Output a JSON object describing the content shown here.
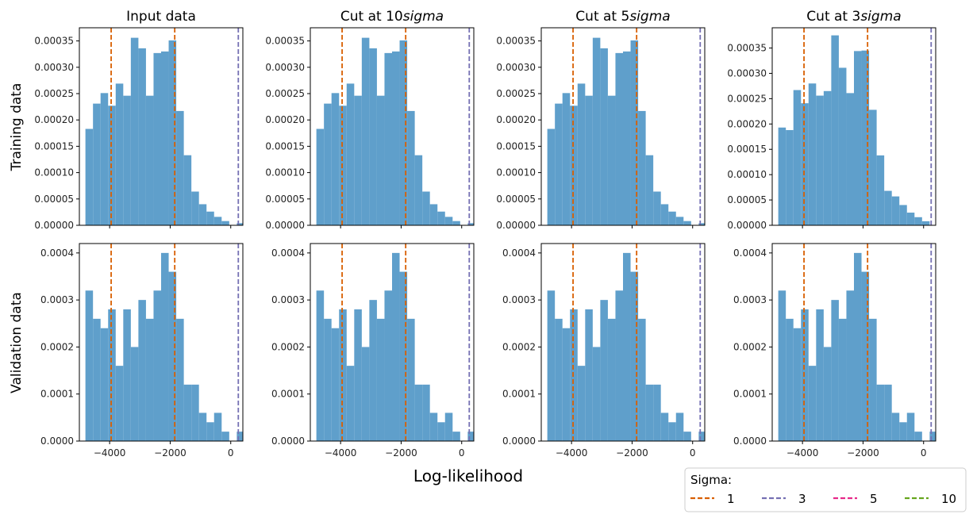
{
  "figure": {
    "xlabel": "Log-likelihood",
    "row_labels": [
      "Training data",
      "Validation data"
    ],
    "colors": {
      "bar": "#5f9fcb",
      "sigma_1": "#d95f02",
      "sigma_3": "#7570b3",
      "sigma_5": "#e7298a",
      "sigma_10": "#66a61e"
    },
    "legend": {
      "title": "Sigma:",
      "placement": "lower-right",
      "entries": [
        {
          "label": "1",
          "color": "#d95f02"
        },
        {
          "label": "3",
          "color": "#7570b3"
        },
        {
          "label": "5",
          "color": "#e7298a"
        },
        {
          "label": "10",
          "color": "#66a61e"
        }
      ]
    }
  },
  "chart_data": [
    {
      "type": "bar",
      "title": "Input data",
      "row": "Training data",
      "xlim": [
        -5000,
        400
      ],
      "ylim": [
        0,
        0.000375
      ],
      "xticks": [
        -4000,
        -2000,
        0
      ],
      "xtick_labels": [
        "−4000",
        "−2000",
        "0"
      ],
      "show_xtick_labels": false,
      "yticks": [
        0,
        5e-05,
        0.0001,
        0.00015,
        0.0002,
        0.00025,
        0.0003,
        0.00035
      ],
      "ytick_labels": [
        "0.00000",
        "0.00005",
        "0.00010",
        "0.00015",
        "0.00020",
        "0.00025",
        "0.00030",
        "0.00035"
      ],
      "bin_start": -4800,
      "bin_width": 250,
      "values": [
        0.000183,
        0.000231,
        0.000251,
        0.000227,
        0.000269,
        0.000246,
        0.000356,
        0.000336,
        0.000246,
        0.000327,
        0.00033,
        0.000351,
        0.000217,
        0.000133,
        6.4e-05,
        4e-05,
        2.6e-05,
        1.6e-05,
        8e-06,
        0,
        4e-06
      ],
      "vlines": [
        {
          "x": -3950,
          "sigma": "1"
        },
        {
          "x": -1850,
          "sigma": "1"
        },
        {
          "x": 250,
          "sigma": "3"
        }
      ]
    },
    {
      "type": "bar",
      "title": "Cut at 10$sigma$",
      "title_parts": [
        "Cut at 10",
        "sigma"
      ],
      "row": "Training data",
      "xlim": [
        -5000,
        400
      ],
      "ylim": [
        0,
        0.000375
      ],
      "xticks": [
        -4000,
        -2000,
        0
      ],
      "xtick_labels": [
        "−4000",
        "−2000",
        "0"
      ],
      "show_xtick_labels": false,
      "yticks": [
        0,
        5e-05,
        0.0001,
        0.00015,
        0.0002,
        0.00025,
        0.0003,
        0.00035
      ],
      "ytick_labels": [
        "0.00000",
        "0.00005",
        "0.00010",
        "0.00015",
        "0.00020",
        "0.00025",
        "0.00030",
        "0.00035"
      ],
      "bin_start": -4800,
      "bin_width": 250,
      "values": [
        0.000183,
        0.000231,
        0.000251,
        0.000227,
        0.000269,
        0.000246,
        0.000356,
        0.000336,
        0.000246,
        0.000327,
        0.00033,
        0.000351,
        0.000217,
        0.000133,
        6.4e-05,
        4e-05,
        2.6e-05,
        1.6e-05,
        8e-06,
        0,
        4e-06
      ],
      "vlines": [
        {
          "x": -3950,
          "sigma": "1"
        },
        {
          "x": -1850,
          "sigma": "1"
        },
        {
          "x": 250,
          "sigma": "3"
        }
      ]
    },
    {
      "type": "bar",
      "title": "Cut at 5$sigma$",
      "title_parts": [
        "Cut at 5",
        "sigma"
      ],
      "row": "Training data",
      "xlim": [
        -5000,
        400
      ],
      "ylim": [
        0,
        0.000375
      ],
      "xticks": [
        -4000,
        -2000,
        0
      ],
      "xtick_labels": [
        "−4000",
        "−2000",
        "0"
      ],
      "show_xtick_labels": false,
      "yticks": [
        0,
        5e-05,
        0.0001,
        0.00015,
        0.0002,
        0.00025,
        0.0003,
        0.00035
      ],
      "ytick_labels": [
        "0.00000",
        "0.00005",
        "0.00010",
        "0.00015",
        "0.00020",
        "0.00025",
        "0.00030",
        "0.00035"
      ],
      "bin_start": -4800,
      "bin_width": 250,
      "values": [
        0.000183,
        0.000231,
        0.000251,
        0.000227,
        0.000269,
        0.000246,
        0.000356,
        0.000336,
        0.000246,
        0.000327,
        0.00033,
        0.000351,
        0.000217,
        0.000133,
        6.4e-05,
        4e-05,
        2.6e-05,
        1.6e-05,
        8e-06,
        0,
        4e-06
      ],
      "vlines": [
        {
          "x": -3950,
          "sigma": "1"
        },
        {
          "x": -1850,
          "sigma": "1"
        },
        {
          "x": 250,
          "sigma": "3"
        }
      ]
    },
    {
      "type": "bar",
      "title": "Cut at 3$sigma$",
      "title_parts": [
        "Cut at 3",
        "sigma"
      ],
      "row": "Training data",
      "xlim": [
        -5000,
        400
      ],
      "ylim": [
        0,
        0.00039
      ],
      "xticks": [
        -4000,
        -2000,
        0
      ],
      "xtick_labels": [
        "−4000",
        "−2000",
        "0"
      ],
      "show_xtick_labels": false,
      "yticks": [
        0,
        5e-05,
        0.0001,
        0.00015,
        0.0002,
        0.00025,
        0.0003,
        0.00035
      ],
      "ytick_labels": [
        "0.00000",
        "0.00005",
        "0.00010",
        "0.00015",
        "0.00020",
        "0.00025",
        "0.00030",
        "0.00035"
      ],
      "bin_start": -4800,
      "bin_width": 250,
      "values": [
        0.000193,
        0.000188,
        0.000267,
        0.000241,
        0.00028,
        0.000256,
        0.000265,
        0.000375,
        0.000311,
        0.000261,
        0.000344,
        0.000345,
        0.000228,
        0.000138,
        6.8e-05,
        5.7e-05,
        4e-05,
        2.5e-05,
        1.6e-05,
        8e-06
      ],
      "vlines": [
        {
          "x": -3950,
          "sigma": "1"
        },
        {
          "x": -1850,
          "sigma": "1"
        },
        {
          "x": 250,
          "sigma": "3"
        }
      ]
    },
    {
      "type": "bar",
      "title": "",
      "row": "Validation data",
      "xlim": [
        -5000,
        400
      ],
      "ylim": [
        0,
        0.00042
      ],
      "xticks": [
        -4000,
        -2000,
        0
      ],
      "xtick_labels": [
        "−4000",
        "−2000",
        "0"
      ],
      "show_xtick_labels": true,
      "yticks": [
        0,
        0.0001,
        0.0002,
        0.0003,
        0.0004
      ],
      "ytick_labels": [
        "0.0000",
        "0.0001",
        "0.0002",
        "0.0003",
        "0.0004"
      ],
      "bin_start": -4800,
      "bin_width": 250,
      "values": [
        0.00032,
        0.00026,
        0.00024,
        0.00028,
        0.00016,
        0.00028,
        0.0002,
        0.0003,
        0.00026,
        0.00032,
        0.0004,
        0.00036,
        0.00026,
        0.00012,
        0.00012,
        6e-05,
        4e-05,
        6e-05,
        2e-05,
        0,
        2e-05
      ],
      "vlines": [
        {
          "x": -3950,
          "sigma": "1"
        },
        {
          "x": -1850,
          "sigma": "1"
        },
        {
          "x": 250,
          "sigma": "3"
        }
      ]
    },
    {
      "type": "bar",
      "title": "",
      "row": "Validation data",
      "xlim": [
        -5000,
        400
      ],
      "ylim": [
        0,
        0.00042
      ],
      "xticks": [
        -4000,
        -2000,
        0
      ],
      "xtick_labels": [
        "−4000",
        "−2000",
        "0"
      ],
      "show_xtick_labels": true,
      "yticks": [
        0,
        0.0001,
        0.0002,
        0.0003,
        0.0004
      ],
      "ytick_labels": [
        "0.0000",
        "0.0001",
        "0.0002",
        "0.0003",
        "0.0004"
      ],
      "bin_start": -4800,
      "bin_width": 250,
      "values": [
        0.00032,
        0.00026,
        0.00024,
        0.00028,
        0.00016,
        0.00028,
        0.0002,
        0.0003,
        0.00026,
        0.00032,
        0.0004,
        0.00036,
        0.00026,
        0.00012,
        0.00012,
        6e-05,
        4e-05,
        6e-05,
        2e-05,
        0,
        2e-05
      ],
      "vlines": [
        {
          "x": -3950,
          "sigma": "1"
        },
        {
          "x": -1850,
          "sigma": "1"
        },
        {
          "x": 250,
          "sigma": "3"
        }
      ]
    },
    {
      "type": "bar",
      "title": "",
      "row": "Validation data",
      "xlim": [
        -5000,
        400
      ],
      "ylim": [
        0,
        0.00042
      ],
      "xticks": [
        -4000,
        -2000,
        0
      ],
      "xtick_labels": [
        "−4000",
        "−2000",
        "0"
      ],
      "show_xtick_labels": true,
      "yticks": [
        0,
        0.0001,
        0.0002,
        0.0003,
        0.0004
      ],
      "ytick_labels": [
        "0.0000",
        "0.0001",
        "0.0002",
        "0.0003",
        "0.0004"
      ],
      "bin_start": -4800,
      "bin_width": 250,
      "values": [
        0.00032,
        0.00026,
        0.00024,
        0.00028,
        0.00016,
        0.00028,
        0.0002,
        0.0003,
        0.00026,
        0.00032,
        0.0004,
        0.00036,
        0.00026,
        0.00012,
        0.00012,
        6e-05,
        4e-05,
        6e-05,
        2e-05,
        0,
        2e-05
      ],
      "vlines": [
        {
          "x": -3950,
          "sigma": "1"
        },
        {
          "x": -1850,
          "sigma": "1"
        },
        {
          "x": 250,
          "sigma": "3"
        }
      ]
    },
    {
      "type": "bar",
      "title": "",
      "row": "Validation data",
      "xlim": [
        -5000,
        400
      ],
      "ylim": [
        0,
        0.00042
      ],
      "xticks": [
        -4000,
        -2000,
        0
      ],
      "xtick_labels": [
        "−4000",
        "−2000",
        "0"
      ],
      "show_xtick_labels": true,
      "yticks": [
        0,
        0.0001,
        0.0002,
        0.0003,
        0.0004
      ],
      "ytick_labels": [
        "0.0000",
        "0.0001",
        "0.0002",
        "0.0003",
        "0.0004"
      ],
      "bin_start": -4800,
      "bin_width": 250,
      "values": [
        0.00032,
        0.00026,
        0.00024,
        0.00028,
        0.00016,
        0.00028,
        0.0002,
        0.0003,
        0.00026,
        0.00032,
        0.0004,
        0.00036,
        0.00026,
        0.00012,
        0.00012,
        6e-05,
        4e-05,
        6e-05,
        2e-05,
        0,
        2e-05
      ],
      "vlines": [
        {
          "x": -3950,
          "sigma": "1"
        },
        {
          "x": -1850,
          "sigma": "1"
        },
        {
          "x": 250,
          "sigma": "3"
        }
      ]
    }
  ]
}
